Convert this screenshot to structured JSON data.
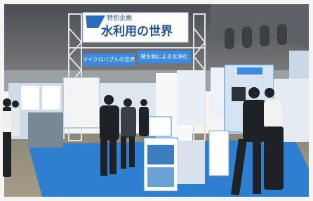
{
  "banner": {
    "subtitle": "特別企画",
    "title": "水利用の世界"
  },
  "signs": [
    "マイクロバブルの世界",
    "微生物による水浄化"
  ]
}
